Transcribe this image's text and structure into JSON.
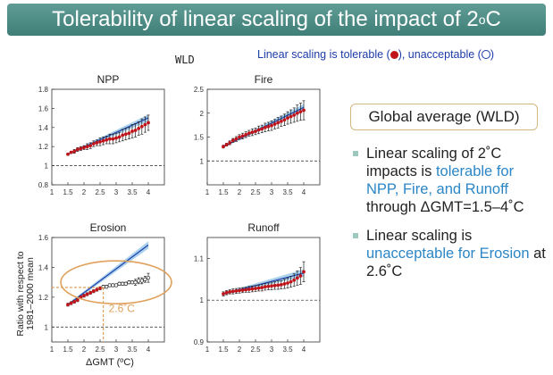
{
  "header": {
    "title_main": "Tolerability of linear scaling of the impact of 2",
    "title_sup": "o",
    "title_end": "C"
  },
  "figure_label": "WLD",
  "legend_note": {
    "text_a": "Linear scaling is tolerable (",
    "text_b": "), unacceptable (",
    "text_c": ")"
  },
  "panel": {
    "box_title": "Global average (WLD)",
    "bullet1_a": "Linear scaling of 2˚C impacts is ",
    "bullet1_hl": "tolerable for NPP, Fire, and Runoff",
    "bullet1_b": " through ΔGMT=1.5–4˚C",
    "bullet2_a": "Linear scaling is ",
    "bullet2_hl": "unacceptable for Erosion",
    "bullet2_b": " at 2.6˚C"
  },
  "shared_labels": {
    "ylabel_line1": "Ratio with respect to",
    "ylabel_line2": "1981–2000 mean",
    "xlabel": "ΔGMT (ºC)"
  },
  "colors": {
    "title_bar": "#4e8e87",
    "tolerable_dot": "#c0141b",
    "unacceptable_ring": "#1c3aa8",
    "scaling_line": "#1f3fae",
    "scaling_band": "#8fc3e6",
    "highlight_text": "#2b86c6",
    "annotation": "#e0a15c"
  },
  "chart_data": [
    {
      "type": "scatter",
      "title": "NPP",
      "x": [
        1.5,
        1.6,
        1.7,
        1.8,
        1.9,
        2.0,
        2.1,
        2.2,
        2.3,
        2.4,
        2.5,
        2.6,
        2.7,
        2.8,
        2.9,
        3.0,
        3.1,
        3.2,
        3.3,
        3.4,
        3.5,
        3.6,
        3.7,
        3.8,
        3.9,
        4.0
      ],
      "y": [
        1.12,
        1.14,
        1.15,
        1.17,
        1.18,
        1.19,
        1.2,
        1.21,
        1.23,
        1.24,
        1.25,
        1.26,
        1.27,
        1.28,
        1.28,
        1.29,
        1.3,
        1.32,
        1.33,
        1.34,
        1.36,
        1.37,
        1.39,
        1.41,
        1.43,
        1.45
      ],
      "err": [
        0.01,
        0.01,
        0.02,
        0.02,
        0.02,
        0.02,
        0.03,
        0.03,
        0.03,
        0.03,
        0.04,
        0.04,
        0.04,
        0.05,
        0.05,
        0.05,
        0.05,
        0.06,
        0.06,
        0.06,
        0.07,
        0.07,
        0.07,
        0.08,
        0.08,
        0.08
      ],
      "status": "tolerable",
      "xlim": [
        1,
        4.5
      ],
      "ylim": [
        0.8,
        1.8
      ],
      "xticks": [
        "1",
        "1.5",
        "2",
        "2.5",
        "3",
        "3.5",
        "4"
      ],
      "yticks": [
        "0.8",
        "1",
        "1.2",
        "1.4",
        "1.6",
        "1.8"
      ],
      "yticks_values": [
        0.8,
        1.0,
        1.2,
        1.4,
        1.6,
        1.8
      ],
      "scaling_line": {
        "x": [
          1.5,
          4.0
        ],
        "y": [
          1.12,
          1.5
        ]
      }
    },
    {
      "type": "scatter",
      "title": "Fire",
      "x": [
        1.5,
        1.6,
        1.7,
        1.8,
        1.9,
        2.0,
        2.1,
        2.2,
        2.3,
        2.4,
        2.5,
        2.6,
        2.7,
        2.8,
        2.9,
        3.0,
        3.1,
        3.2,
        3.3,
        3.4,
        3.5,
        3.6,
        3.7,
        3.8,
        3.9,
        4.0
      ],
      "y": [
        1.3,
        1.34,
        1.38,
        1.43,
        1.46,
        1.5,
        1.52,
        1.55,
        1.58,
        1.6,
        1.62,
        1.65,
        1.67,
        1.7,
        1.72,
        1.74,
        1.77,
        1.8,
        1.83,
        1.86,
        1.9,
        1.93,
        1.96,
        2.0,
        2.03,
        2.06
      ],
      "err": [
        0.03,
        0.03,
        0.04,
        0.04,
        0.05,
        0.05,
        0.06,
        0.06,
        0.06,
        0.07,
        0.07,
        0.08,
        0.08,
        0.09,
        0.09,
        0.1,
        0.1,
        0.11,
        0.11,
        0.12,
        0.13,
        0.14,
        0.15,
        0.17,
        0.18,
        0.2
      ],
      "status": "tolerable",
      "xlim": [
        1,
        4.5
      ],
      "ylim": [
        0.5,
        2.5
      ],
      "xticks": [
        "1",
        "1.5",
        "2",
        "2.5",
        "3",
        "3.5",
        "4"
      ],
      "yticks": [
        "1",
        "1.5",
        "2",
        "2.5"
      ],
      "yticks_values": [
        1.0,
        1.5,
        2.0,
        2.5
      ],
      "scaling_line": {
        "x": [
          1.5,
          4.0
        ],
        "y": [
          1.3,
          2.12
        ]
      }
    },
    {
      "type": "scatter",
      "title": "Erosion",
      "x": [
        1.5,
        1.6,
        1.7,
        1.8,
        1.9,
        2.0,
        2.1,
        2.2,
        2.3,
        2.4,
        2.5,
        2.6,
        2.7,
        2.8,
        2.9,
        3.0,
        3.1,
        3.2,
        3.3,
        3.4,
        3.5,
        3.6,
        3.7,
        3.8,
        3.9,
        4.0
      ],
      "y": [
        1.15,
        1.16,
        1.17,
        1.18,
        1.2,
        1.21,
        1.22,
        1.23,
        1.24,
        1.25,
        1.26,
        1.27,
        1.27,
        1.28,
        1.28,
        1.28,
        1.29,
        1.29,
        1.29,
        1.3,
        1.3,
        1.3,
        1.31,
        1.31,
        1.32,
        1.33
      ],
      "err": [
        0.01,
        0.01,
        0.01,
        0.01,
        0.01,
        0.01,
        0.01,
        0.01,
        0.01,
        0.01,
        0.01,
        0.01,
        0.01,
        0.01,
        0.01,
        0.01,
        0.01,
        0.01,
        0.01,
        0.01,
        0.01,
        0.02,
        0.02,
        0.02,
        0.02,
        0.03
      ],
      "status": "unacceptable",
      "filled_until_x": 2.5,
      "xlim": [
        1,
        4.5
      ],
      "ylim": [
        0.9,
        1.6
      ],
      "xticks": [
        "1",
        "1.5",
        "2",
        "2.5",
        "3",
        "3.5",
        "4"
      ],
      "yticks": [
        "1",
        "1.2",
        "1.4",
        "1.6"
      ],
      "yticks_values": [
        1.0,
        1.2,
        1.4,
        1.6
      ],
      "scaling_line": {
        "x": [
          1.5,
          4.0
        ],
        "y": [
          1.15,
          1.55
        ]
      },
      "annotation": {
        "label": "2.6˚C",
        "x": 2.6
      }
    },
    {
      "type": "scatter",
      "title": "Runoff",
      "x": [
        1.5,
        1.6,
        1.7,
        1.8,
        1.9,
        2.0,
        2.1,
        2.2,
        2.3,
        2.4,
        2.5,
        2.6,
        2.7,
        2.8,
        2.9,
        3.0,
        3.1,
        3.2,
        3.3,
        3.4,
        3.5,
        3.6,
        3.7,
        3.8,
        3.9,
        4.0
      ],
      "y": [
        1.015,
        1.018,
        1.02,
        1.021,
        1.022,
        1.023,
        1.024,
        1.025,
        1.026,
        1.027,
        1.028,
        1.029,
        1.03,
        1.032,
        1.033,
        1.034,
        1.035,
        1.036,
        1.037,
        1.039,
        1.041,
        1.044,
        1.048,
        1.053,
        1.058,
        1.068
      ],
      "err": [
        0.005,
        0.005,
        0.005,
        0.006,
        0.006,
        0.006,
        0.006,
        0.006,
        0.007,
        0.007,
        0.007,
        0.007,
        0.008,
        0.008,
        0.008,
        0.009,
        0.009,
        0.01,
        0.01,
        0.011,
        0.012,
        0.013,
        0.015,
        0.017,
        0.02,
        0.024
      ],
      "status": "tolerable",
      "xlim": [
        1,
        4.5
      ],
      "ylim": [
        0.9,
        1.15
      ],
      "xticks": [
        "1",
        "1.5",
        "2",
        "2.5",
        "3",
        "3.5",
        "4"
      ],
      "yticks": [
        "0.9",
        "1",
        "1.1"
      ],
      "yticks_values": [
        0.9,
        1.0,
        1.1
      ],
      "scaling_line": {
        "x": [
          1.5,
          4.0
        ],
        "y": [
          1.015,
          1.065
        ]
      }
    }
  ]
}
